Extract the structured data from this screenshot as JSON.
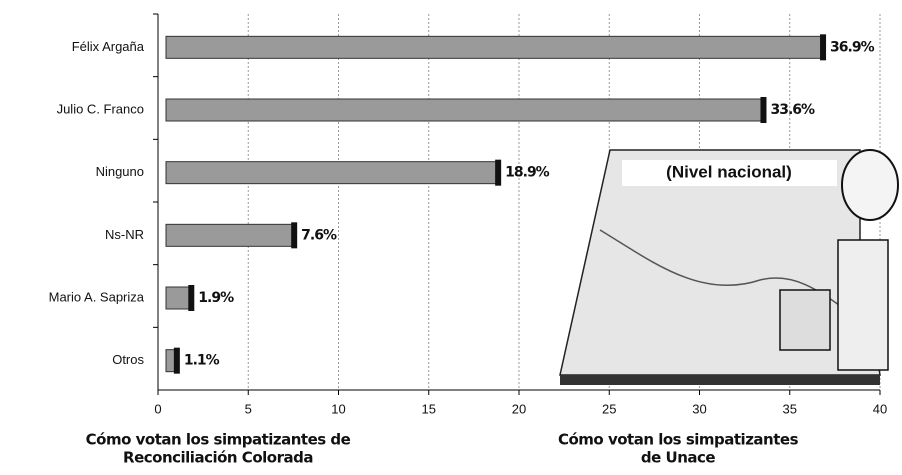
{
  "chart_data": {
    "type": "bar",
    "orientation": "horizontal",
    "categories": [
      "Félix Argaña",
      "Julio C. Franco",
      "Ninguno",
      "Ns-NR",
      "Mario A. Sapriza",
      "Otros"
    ],
    "values": [
      36.9,
      33.6,
      18.9,
      7.6,
      1.9,
      1.1
    ],
    "value_labels": [
      "36.9%",
      "33.6%",
      "18.9%",
      "7.6%",
      "1.9%",
      "1.1%"
    ],
    "color": "#9a9a9a",
    "xlim": [
      0,
      40
    ],
    "xticks": [
      0,
      5,
      10,
      15,
      20,
      25,
      30,
      35,
      40
    ],
    "grid": true,
    "annotation": "(Nivel nacional)",
    "footnotes": [
      [
        "Cómo votan los simpatizantes de",
        "Reconciliación Colorada"
      ],
      [
        "Cómo votan los simpatizantes",
        "de Unace"
      ]
    ]
  }
}
